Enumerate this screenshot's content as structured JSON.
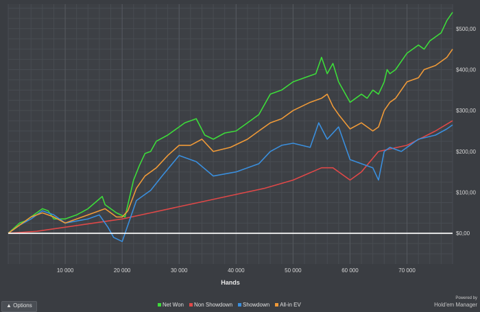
{
  "chart_data": {
    "type": "line",
    "xlabel": "Hands",
    "ylabel": "",
    "xlim": [
      0,
      78000
    ],
    "ylim": [
      -75,
      560
    ],
    "x_ticks": [
      10000,
      20000,
      30000,
      40000,
      50000,
      60000,
      70000
    ],
    "x_tick_labels": [
      "10 000",
      "20 000",
      "30 000",
      "40 000",
      "50 000",
      "60 000",
      "70 000"
    ],
    "y_ticks": [
      0,
      100,
      200,
      300,
      400,
      500
    ],
    "y_tick_labels": [
      "$0,00",
      "$100,00",
      "$200,00",
      "$300,00",
      "$400,00",
      "$500,00"
    ],
    "grid": true,
    "legend_position": "bottom",
    "series": [
      {
        "name": "Net Won",
        "color": "#3ddc3a",
        "x": [
          0,
          2000,
          3000,
          5000,
          6000,
          7000,
          8000,
          10000,
          12000,
          14000,
          16500,
          17000,
          19000,
          20500,
          22000,
          23000,
          24000,
          25000,
          26000,
          28000,
          30000,
          31000,
          33000,
          34500,
          36000,
          38000,
          40000,
          42000,
          44000,
          46000,
          48000,
          50000,
          52000,
          54000,
          55000,
          56000,
          57000,
          58000,
          60000,
          62000,
          63000,
          64000,
          65000,
          65500,
          66000,
          66500,
          67000,
          68000,
          70000,
          72000,
          73000,
          74000,
          76000,
          77000,
          78000
        ],
        "y": [
          0,
          25,
          30,
          50,
          60,
          55,
          35,
          35,
          45,
          60,
          90,
          70,
          50,
          40,
          130,
          165,
          195,
          200,
          225,
          240,
          260,
          270,
          280,
          240,
          230,
          245,
          250,
          270,
          290,
          340,
          350,
          370,
          380,
          390,
          430,
          390,
          415,
          370,
          320,
          340,
          330,
          350,
          340,
          355,
          370,
          400,
          390,
          400,
          440,
          460,
          450,
          470,
          490,
          520,
          540
        ]
      },
      {
        "name": "Non Showdown",
        "color": "#e04848",
        "x": [
          0,
          5000,
          10000,
          15000,
          20000,
          25000,
          30000,
          35000,
          40000,
          45000,
          50000,
          55000,
          57000,
          60000,
          62000,
          65000,
          70000,
          75000,
          78000
        ],
        "y": [
          0,
          5,
          15,
          25,
          35,
          50,
          65,
          80,
          95,
          110,
          130,
          160,
          160,
          130,
          150,
          200,
          215,
          250,
          275
        ]
      },
      {
        "name": "Showdown",
        "color": "#3a8fde",
        "x": [
          0,
          2000,
          4000,
          6000,
          8000,
          10000,
          12000,
          14000,
          16000,
          17500,
          18500,
          20000,
          21000,
          22500,
          23500,
          25000,
          27000,
          30000,
          33000,
          36000,
          40000,
          42000,
          44000,
          46000,
          48000,
          50000,
          53000,
          54500,
          56000,
          58000,
          60000,
          62000,
          64000,
          65000,
          66000,
          67000,
          69000,
          72000,
          75000,
          77000,
          78000
        ],
        "y": [
          0,
          20,
          35,
          55,
          45,
          25,
          30,
          35,
          45,
          15,
          -10,
          -20,
          20,
          80,
          90,
          105,
          140,
          190,
          175,
          140,
          150,
          160,
          170,
          200,
          215,
          220,
          210,
          270,
          230,
          260,
          180,
          170,
          160,
          130,
          200,
          210,
          200,
          230,
          240,
          255,
          265
        ]
      },
      {
        "name": "All-in EV",
        "color": "#f09a38",
        "x": [
          0,
          2000,
          4000,
          6000,
          8000,
          10000,
          13000,
          16000,
          17000,
          19000,
          20000,
          21000,
          22500,
          24000,
          26000,
          28000,
          30000,
          32000,
          34000,
          36000,
          39000,
          42000,
          44000,
          46000,
          48000,
          50000,
          53000,
          55000,
          56000,
          57000,
          58000,
          60000,
          62000,
          64000,
          65000,
          66000,
          67000,
          68000,
          70000,
          72000,
          73000,
          75000,
          77000,
          78000
        ],
        "y": [
          0,
          20,
          40,
          50,
          40,
          25,
          40,
          55,
          60,
          40,
          40,
          55,
          110,
          140,
          160,
          190,
          215,
          215,
          230,
          200,
          210,
          230,
          250,
          270,
          280,
          300,
          320,
          330,
          340,
          310,
          290,
          255,
          270,
          250,
          260,
          300,
          320,
          330,
          370,
          380,
          400,
          410,
          430,
          450
        ]
      }
    ]
  },
  "ui": {
    "options_label": "▲ Options",
    "brand_top": "Powered by",
    "brand_name": "Hold'em Manager"
  }
}
